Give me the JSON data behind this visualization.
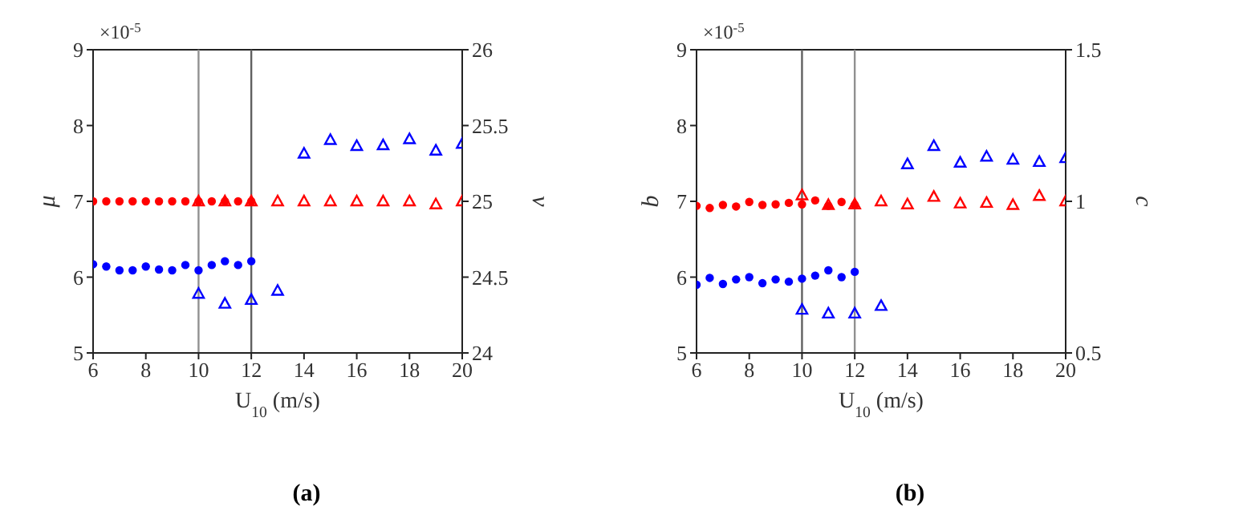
{
  "chart_data": [
    {
      "type": "scatter",
      "title": "(a)",
      "xlabel": "U$_{10}$ (m/s)",
      "ylabel": "μ",
      "y2label": "v",
      "annotations": [
        "×10$^{-5}$"
      ],
      "xlim": [
        6,
        20
      ],
      "xticks": [
        6,
        8,
        10,
        12,
        14,
        16,
        18,
        20
      ],
      "ylim": [
        5,
        9
      ],
      "yticks": [
        5,
        6,
        7,
        8,
        9
      ],
      "y2lim": [
        24,
        26
      ],
      "y2ticks": [
        24,
        24.5,
        25,
        25.5,
        26
      ],
      "grid": false,
      "legend": false,
      "ref_lines": [
        {
          "axis": "x",
          "value": 10,
          "color": "#909090"
        },
        {
          "axis": "x",
          "value": 12,
          "color": "#606060"
        }
      ],
      "series": [
        {
          "color": "#0000ff",
          "marker": "circle",
          "x": [
            6,
            6.5,
            7,
            7.5,
            8,
            8.5,
            9,
            9.5,
            10,
            10.5,
            11,
            11.5,
            12
          ],
          "values": [
            6.17,
            6.14,
            6.09,
            6.09,
            6.14,
            6.1,
            6.09,
            6.16,
            6.09,
            6.16,
            6.21,
            6.16,
            6.21
          ]
        },
        {
          "color": "#0000ff",
          "marker": "triangle",
          "x": [
            10,
            11,
            12,
            13,
            14,
            15,
            16,
            17,
            18,
            19,
            20
          ],
          "values": [
            5.78,
            5.65,
            5.7,
            5.82,
            7.63,
            7.81,
            7.73,
            7.74,
            7.82,
            7.67,
            7.76
          ]
        },
        {
          "color": "#ff0000",
          "marker": "circle",
          "axis": "y2",
          "x": [
            6,
            6.5,
            7,
            7.5,
            8,
            8.5,
            9,
            9.5,
            10,
            10.5,
            11,
            11.5,
            12
          ],
          "values": [
            25,
            25,
            25,
            25,
            25,
            25,
            25,
            25,
            25,
            25,
            25,
            25,
            25
          ]
        },
        {
          "color": "#ff0000",
          "marker": "triangle",
          "axis": "y2",
          "x": [
            10,
            11,
            12,
            13,
            14,
            15,
            16,
            17,
            18,
            19,
            20
          ],
          "values": [
            25,
            25,
            25,
            25,
            25,
            25,
            25,
            25,
            25,
            24.98,
            25
          ]
        }
      ]
    },
    {
      "type": "scatter",
      "title": "(b)",
      "xlabel": "U$_{10}$ (m/s)",
      "ylabel": "b",
      "y2label": "c",
      "annotations": [
        "×10$^{-5}$"
      ],
      "xlim": [
        6,
        20
      ],
      "xticks": [
        6,
        8,
        10,
        12,
        14,
        16,
        18,
        20
      ],
      "ylim": [
        5,
        9
      ],
      "yticks": [
        5,
        6,
        7,
        8,
        9
      ],
      "y2lim": [
        0.5,
        1.5
      ],
      "y2ticks": [
        0.5,
        1,
        1.5
      ],
      "grid": false,
      "legend": false,
      "ref_lines": [
        {
          "axis": "x",
          "value": 10,
          "color": "#606060"
        },
        {
          "axis": "x",
          "value": 12,
          "color": "#909090"
        }
      ],
      "series": [
        {
          "color": "#0000ff",
          "marker": "circle",
          "x": [
            6,
            6.5,
            7,
            7.5,
            8,
            8.5,
            9,
            9.5,
            10,
            10.5,
            11,
            11.5,
            12
          ],
          "values": [
            5.9,
            5.99,
            5.91,
            5.97,
            6.0,
            5.92,
            5.97,
            5.94,
            5.98,
            6.02,
            6.09,
            6.0,
            6.07
          ]
        },
        {
          "color": "#0000ff",
          "marker": "triangle",
          "x": [
            10,
            11,
            12,
            13,
            14,
            15,
            16,
            17,
            18,
            19,
            20
          ],
          "values": [
            5.57,
            5.52,
            5.52,
            5.62,
            7.49,
            7.73,
            7.51,
            7.59,
            7.55,
            7.52,
            7.57
          ]
        },
        {
          "color": "#ff0000",
          "marker": "circle",
          "axis": "y2",
          "x": [
            6,
            6.5,
            7,
            7.5,
            8,
            8.5,
            9,
            9.5,
            10,
            10.5,
            11,
            11.5,
            12
          ],
          "values": [
            0.985,
            0.978,
            0.988,
            0.983,
            0.998,
            0.988,
            0.99,
            0.995,
            0.99,
            1.003,
            0.985,
            0.998,
            0.988
          ]
        },
        {
          "color": "#ff0000",
          "marker": "triangle",
          "axis": "y2",
          "x": [
            10,
            11,
            12,
            13,
            14,
            15,
            16,
            17,
            18,
            19,
            20
          ],
          "values": [
            1.02,
            0.988,
            0.99,
            1.0,
            0.99,
            1.015,
            0.993,
            0.995,
            0.988,
            1.018,
            1.0
          ]
        }
      ]
    }
  ]
}
